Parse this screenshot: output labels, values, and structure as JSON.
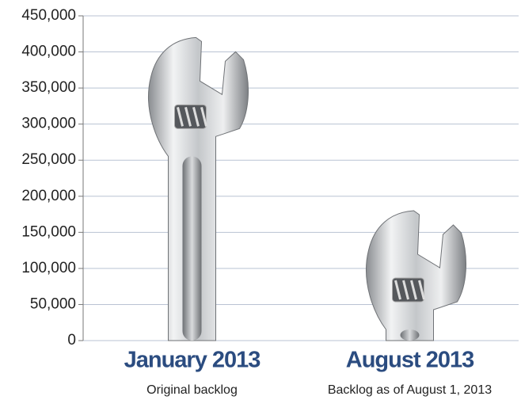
{
  "chart_data": {
    "type": "pictograph",
    "categories": [
      "January 2013",
      "August 2013"
    ],
    "sublabels": [
      "Original backlog",
      "Backlog as of August 1, 2013"
    ],
    "values": [
      420000,
      180000
    ],
    "ylim": [
      0,
      450000
    ],
    "yticks": [
      0,
      {
        "value": 50000,
        "label": "50,000"
      },
      {
        "value": 100000,
        "label": "100,000"
      },
      {
        "value": 150000,
        "label": "150,000"
      },
      {
        "value": 200000,
        "label": "200,000"
      },
      {
        "value": 250000,
        "label": "250,000"
      },
      {
        "value": 300000,
        "label": "300,000"
      },
      {
        "value": 350000,
        "label": "350,000"
      },
      {
        "value": 400000,
        "label": "400,000"
      },
      {
        "value": 450000,
        "label": "450,000"
      }
    ],
    "grid": true,
    "category_color": "#2b4c80"
  }
}
